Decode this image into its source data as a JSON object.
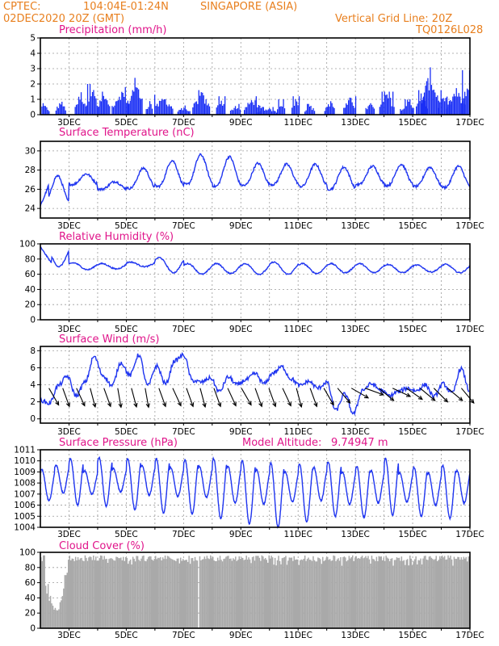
{
  "header": {
    "source": "CPTEC:",
    "coords": "104:04E-01:24N",
    "location": "SINGAPORE (ASIA)",
    "datetime": "02DEC2020 20Z (GMT)",
    "grid_note": "Vertical Grid Line: 20Z",
    "code": "TQ0126L028"
  },
  "colors": {
    "header": "#e87f1e",
    "title": "#e0148a",
    "series": "#1f35f0",
    "bars": "#1a2ff5",
    "cloud": "#a9a9a9"
  },
  "x_axis": {
    "labels": [
      "3DEC",
      "5DEC",
      "7DEC",
      "9DEC",
      "11DEC",
      "13DEC",
      "15DEC",
      "17DEC"
    ]
  },
  "chart_data": [
    {
      "type": "bar",
      "title": "Precipitation (mm/h)",
      "ylim": [
        0,
        5
      ],
      "yticks": [
        0,
        1,
        2,
        3,
        4,
        5
      ],
      "bursts": [
        [
          0.05,
          0.8
        ],
        [
          0.7,
          1.0
        ],
        [
          1.4,
          1.6
        ],
        [
          1.8,
          2.0
        ],
        [
          2.2,
          1.5
        ],
        [
          2.8,
          1.8
        ],
        [
          3.3,
          2.4
        ],
        [
          3.8,
          1.0
        ],
        [
          4.3,
          1.3
        ],
        [
          5.0,
          0.6
        ],
        [
          5.6,
          1.6
        ],
        [
          6.3,
          1.2
        ],
        [
          6.8,
          0.7
        ],
        [
          7.4,
          1.2
        ],
        [
          7.9,
          0.5
        ],
        [
          8.4,
          1.0
        ],
        [
          8.9,
          1.2
        ],
        [
          9.4,
          0.7
        ],
        [
          10.1,
          1.0
        ],
        [
          10.8,
          1.2
        ],
        [
          11.5,
          1.1
        ],
        [
          12.1,
          1.5
        ],
        [
          12.8,
          1.0
        ],
        [
          13.3,
          1.6
        ],
        [
          13.6,
          3.1
        ],
        [
          14.1,
          1.6
        ],
        [
          14.5,
          1.8
        ],
        [
          15.0,
          2.9
        ],
        [
          15.6,
          2.2
        ],
        [
          16.1,
          0.9
        ],
        [
          16.7,
          0.8
        ]
      ]
    },
    {
      "type": "line",
      "title": "Surface Temperature (nC)",
      "ylim": [
        23,
        31
      ],
      "yticks": [
        24,
        26,
        28,
        30
      ],
      "diurnal": {
        "base": 27.0,
        "peaks": [
          27.4,
          27.6,
          26.8,
          28.2,
          29.0,
          29.6,
          29.4,
          28.7,
          28.6,
          28.6,
          28.3,
          28.4,
          28.6,
          28.3,
          28.4,
          28.7
        ],
        "troughs": [
          24.5,
          26.5,
          26.0,
          26.1,
          26.3,
          26.5,
          26.3,
          26.4,
          26.5,
          26.3,
          26.0,
          26.5,
          26.4,
          26.3,
          26.2,
          26.9
        ]
      }
    },
    {
      "type": "line",
      "title": "Relative Humidity (%)",
      "ylim": [
        0,
        100
      ],
      "yticks": [
        0,
        20,
        40,
        60,
        80,
        100
      ],
      "diurnal": {
        "peaks": [
          96,
          75,
          74,
          76,
          82,
          74,
          74,
          74,
          76,
          74,
          74,
          74,
          73,
          72,
          73,
          75
        ],
        "troughs": [
          70,
          66,
          67,
          70,
          62,
          60,
          61,
          60,
          60,
          61,
          62,
          62,
          62,
          63,
          62,
          60
        ]
      }
    },
    {
      "type": "line",
      "title": "Surface Wind (m/s)",
      "ylim": [
        -0.5,
        8.5
      ],
      "yticks": [
        0,
        2,
        4,
        6,
        8
      ],
      "values": [
        2.2,
        1.8,
        3.9,
        5.0,
        2.7,
        4.3,
        7.3,
        5.1,
        3.9,
        6.6,
        5.1,
        7.5,
        3.9,
        6.2,
        4.1,
        6.8,
        7.5,
        4.5,
        4.3,
        4.8,
        3.2,
        4.9,
        4.0,
        4.6,
        5.3,
        4.1,
        5.4,
        6.1,
        4.7,
        3.9,
        4.4,
        3.6,
        4.3,
        1.0,
        2.9,
        0.6,
        3.4,
        4.1,
        3.4,
        2.7,
        3.2,
        3.6,
        3.3,
        4.0,
        2.6,
        4.1,
        3.0,
        5.9,
        3.2
      ],
      "arrows_deg": [
        210,
        200,
        205,
        195,
        200,
        190,
        195,
        190,
        200,
        205,
        200,
        195,
        200,
        205,
        210,
        200,
        200,
        205,
        195,
        200,
        210,
        220,
        240,
        250,
        230,
        245,
        235,
        230,
        225,
        230,
        220
      ]
    },
    {
      "type": "line",
      "title": "Surface Pressure (hPa)",
      "annotation_label": "Model Altitude:",
      "annotation_value": "9.74947 m",
      "ylim": [
        1004,
        1011
      ],
      "yticks": [
        1004,
        1005,
        1006,
        1007,
        1008,
        1009,
        1010,
        1011
      ],
      "semidiurnal": {
        "highs": [
          1009.2,
          1009.6,
          1010.2,
          1009.1,
          1010.3,
          1009.3,
          1010.2,
          1009.6,
          1010.2,
          1009.4,
          1010.1,
          1009.5,
          1010.2,
          1009.5,
          1010.0,
          1009.2,
          1009.8,
          1009.0,
          1009.7,
          1009.4,
          1009.9,
          1009.0,
          1009.5,
          1009.1,
          1010.2,
          1008.9,
          1009.4,
          1008.9,
          1009.6,
          1009.1,
          1010.1,
          1009.0
        ],
        "lows": [
          1006.4,
          1007.1,
          1006.0,
          1007.0,
          1005.9,
          1007.2,
          1005.6,
          1006.9,
          1005.3,
          1006.8,
          1005.2,
          1006.7,
          1004.8,
          1006.2,
          1004.3,
          1006.1,
          1004.0,
          1006.3,
          1004.5,
          1006.4,
          1005.0,
          1006.1,
          1004.9,
          1006.2,
          1005.1,
          1006.3,
          1005.0,
          1006.0,
          1004.8,
          1006.2,
          1005.1,
          1006.4
        ]
      }
    },
    {
      "type": "bar",
      "title": "Cloud Cover (%)",
      "ylim": [
        0,
        100
      ],
      "yticks": [
        0,
        20,
        40,
        60,
        80,
        100
      ],
      "base_level": 96,
      "dip": {
        "start": 0.05,
        "end": 0.95,
        "min": 17
      }
    }
  ]
}
